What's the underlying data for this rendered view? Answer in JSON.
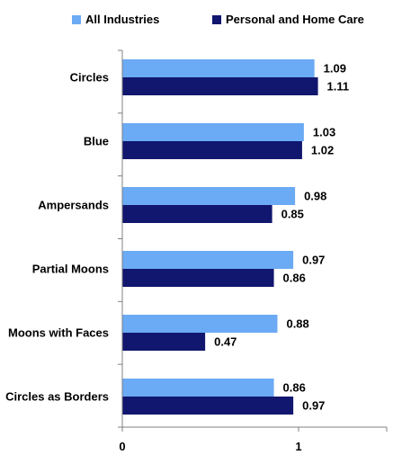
{
  "chart_data": {
    "type": "bar",
    "orientation": "horizontal",
    "title": "",
    "xlabel": "",
    "ylabel": "",
    "categories": [
      "Circles",
      "Blue",
      "Ampersands",
      "Partial Moons",
      "Moons with Faces",
      "Circles as Borders"
    ],
    "series": [
      {
        "name": "All Industries",
        "color": "#6BAAF4",
        "values": [
          1.09,
          1.03,
          0.98,
          0.97,
          0.88,
          0.86
        ]
      },
      {
        "name": "Personal and Home Care",
        "color": "#11166E",
        "values": [
          1.11,
          1.02,
          0.85,
          0.86,
          0.47,
          0.97
        ]
      }
    ],
    "xlim": [
      0,
      1.5
    ],
    "xticks": [
      "0",
      "1"
    ],
    "grid": false,
    "legend_position": "top"
  }
}
